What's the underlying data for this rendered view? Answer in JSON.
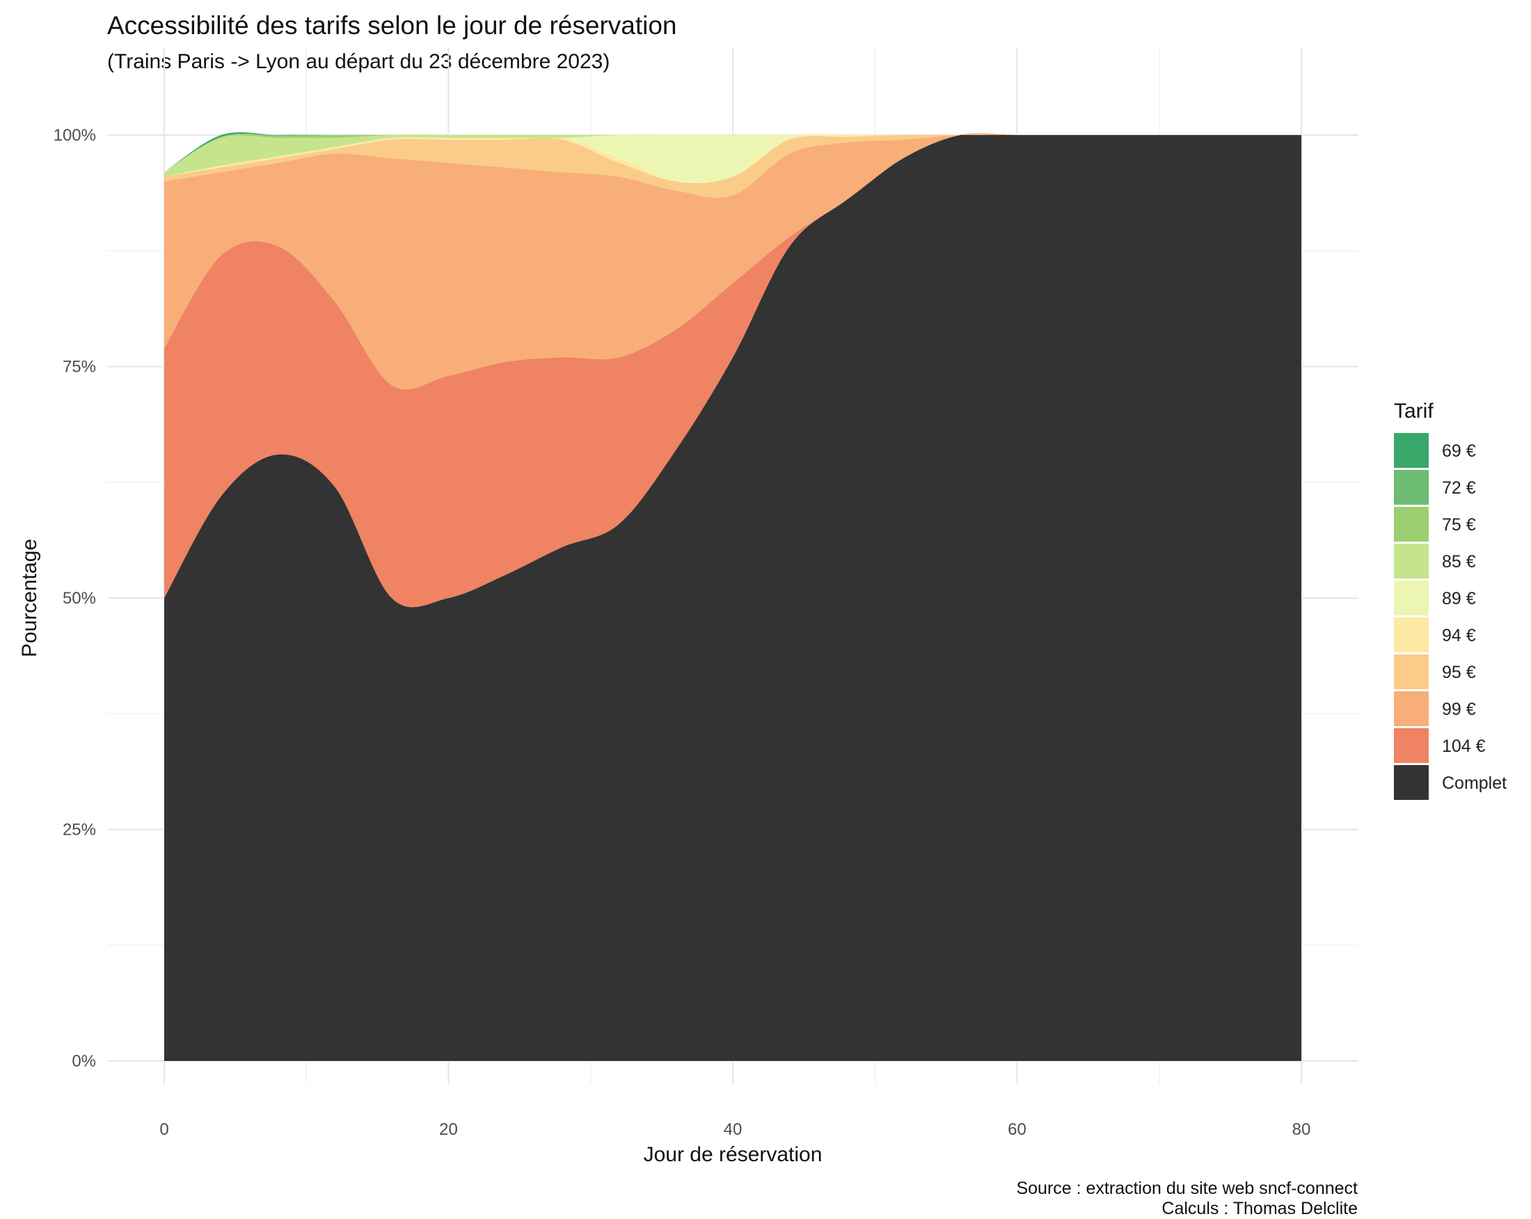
{
  "chart_data": {
    "type": "area",
    "stacked": true,
    "title": "Accessibilité des tarifs selon le jour de réservation",
    "subtitle": "(Trains Paris -> Lyon au départ du 23 décembre 2023)",
    "xlabel": "Jour de réservation",
    "ylabel": "Pourcentage",
    "xlim": [
      0,
      80
    ],
    "ylim": [
      0,
      100
    ],
    "x_ticks": [
      0,
      20,
      40,
      60,
      80
    ],
    "y_ticks": [
      0,
      25,
      50,
      75,
      100
    ],
    "y_tick_labels": [
      "0%",
      "25%",
      "50%",
      "75%",
      "100%"
    ],
    "grid": true,
    "legend": {
      "title": "Tarif",
      "position": "right"
    },
    "x": [
      0,
      4,
      8,
      12,
      16,
      20,
      24,
      28,
      32,
      36,
      40,
      44,
      48,
      52,
      56,
      60,
      64,
      68,
      72,
      76,
      80
    ],
    "series": [
      {
        "name": "Complet",
        "color": "#333333",
        "values": [
          50,
          61,
          65.5,
          62,
          50,
          50,
          52.5,
          55.5,
          58,
          66,
          76,
          88,
          93,
          97.5,
          100,
          100,
          100,
          100,
          100,
          100,
          100
        ]
      },
      {
        "name": "104 €",
        "color": "#ef8363",
        "values": [
          27,
          26,
          22.5,
          20,
          23,
          24,
          23,
          20.5,
          18,
          13,
          8,
          1,
          0,
          0,
          0,
          0,
          0,
          0,
          0,
          0,
          0
        ]
      },
      {
        "name": "99 €",
        "color": "#f8ae78",
        "values": [
          18,
          9,
          9,
          16,
          24.5,
          23,
          21,
          20,
          19.5,
          15,
          9.5,
          9,
          6.2,
          2,
          0,
          0,
          0,
          0,
          0,
          0,
          0
        ]
      },
      {
        "name": "95 €",
        "color": "#fbcb88",
        "values": [
          0.5,
          0.5,
          0.5,
          0.5,
          2,
          2.5,
          3,
          3.5,
          1.5,
          1,
          2,
          1.5,
          0.6,
          0.5,
          0,
          0,
          0,
          0,
          0,
          0,
          0
        ]
      },
      {
        "name": "94 €",
        "color": "#fde8a4",
        "values": [
          0,
          0.2,
          0.2,
          0.2,
          0.2,
          0.2,
          0.2,
          0.2,
          0.5,
          0,
          0,
          0.2,
          0.2,
          0,
          0,
          0,
          0,
          0,
          0,
          0,
          0
        ]
      },
      {
        "name": "89 €",
        "color": "#ecf6b2",
        "values": [
          0,
          0,
          0,
          0,
          0,
          0,
          0,
          0,
          2.5,
          5,
          4.5,
          0.3,
          0,
          0,
          0,
          0,
          0,
          0,
          0,
          0,
          0
        ]
      },
      {
        "name": "85 €",
        "color": "#c6e48c",
        "values": [
          0.5,
          3.0,
          2.0,
          1.0,
          0.3,
          0.3,
          0.3,
          0.3,
          0,
          0,
          0,
          0,
          0,
          0,
          0,
          0,
          0,
          0,
          0,
          0,
          0
        ]
      },
      {
        "name": "75 €",
        "color": "#9bd070",
        "values": [
          0,
          0.1,
          0.2,
          0.3,
          0,
          0,
          0,
          0,
          0,
          0,
          0,
          0,
          0,
          0,
          0,
          0,
          0,
          0,
          0,
          0,
          0
        ]
      },
      {
        "name": "72 €",
        "color": "#6dbc74",
        "values": [
          0,
          0,
          0.1,
          0,
          0,
          0,
          0,
          0,
          0,
          0,
          0,
          0,
          0,
          0,
          0,
          0,
          0,
          0,
          0,
          0,
          0
        ]
      },
      {
        "name": "69 €",
        "color": "#3aa86b",
        "values": [
          0,
          0.2,
          0,
          0,
          0,
          0,
          0,
          0,
          0,
          0,
          0,
          0,
          0,
          0,
          0,
          0,
          0,
          0,
          0,
          0,
          0
        ]
      }
    ],
    "caption": [
      "Source : extraction du site web sncf-connect",
      "Calculs : Thomas Delclite"
    ]
  }
}
